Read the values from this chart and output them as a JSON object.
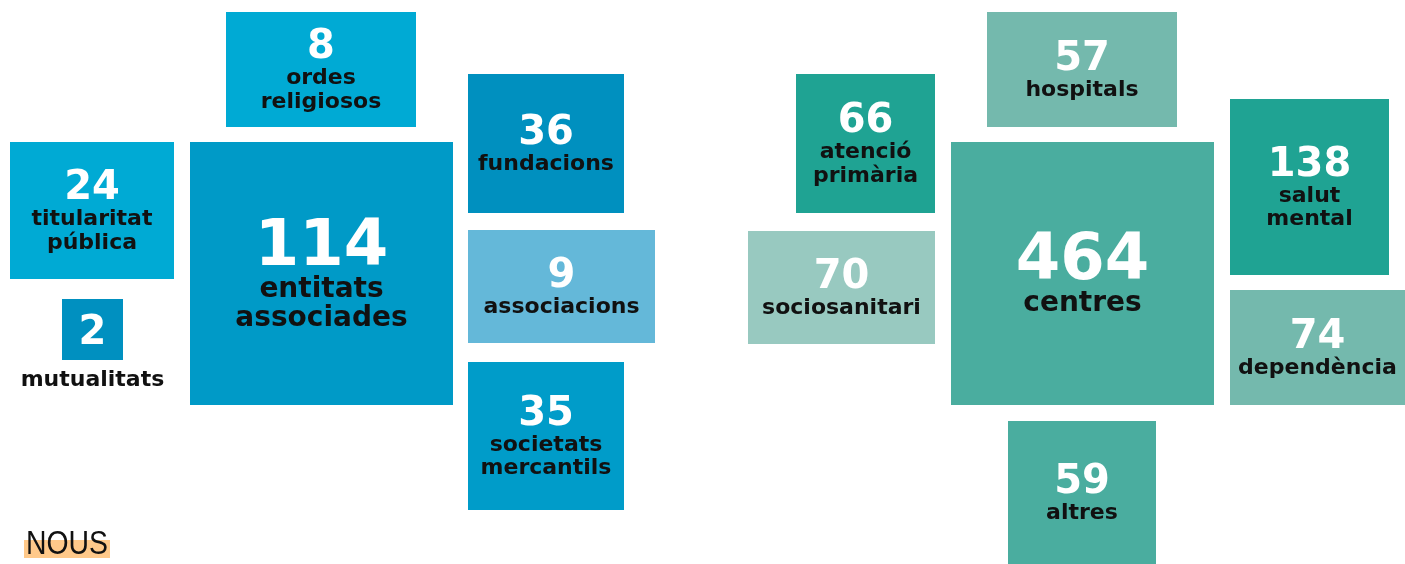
{
  "chart_data": [
    {
      "type": "other",
      "categories": [
        "entitats associades",
        "ordes religiosos",
        "fundacions",
        "associacions",
        "societats mercantils",
        "mutualitats",
        "titularitat pública"
      ],
      "values": [
        114,
        8,
        36,
        9,
        35,
        2,
        24
      ],
      "colors": [
        "#009ac7",
        "#00aad4",
        "#0090bf",
        "#64b8d9",
        "#009cc9",
        "#0090c0",
        "#00aad4"
      ],
      "data_labels": true,
      "annotations": [
        "NOUS"
      ]
    },
    {
      "type": "other",
      "categories": [
        "centres",
        "hospitals",
        "atenció primària",
        "salut mental",
        "sociosanitari",
        "dependència",
        "altres"
      ],
      "values": [
        464,
        57,
        66,
        138,
        70,
        74,
        59
      ],
      "colors": [
        "#4aad9f",
        "#74b9ad",
        "#1fa393",
        "#1fa393",
        "#98c9c0",
        "#74b9ad",
        "#4aad9f"
      ],
      "data_labels": true
    }
  ]
}
